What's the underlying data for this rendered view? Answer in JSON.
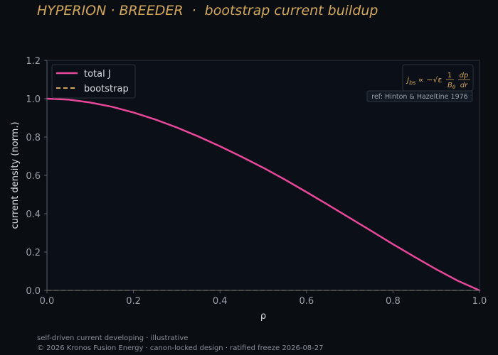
{
  "header": {
    "title_brand": "HYPERION · BREEDER",
    "title_separator": "·",
    "title_sub": "bootstrap current buildup"
  },
  "colors": {
    "background": "#0a0d12",
    "plot_background": "#0b0f17",
    "total_j": "#e8479a",
    "bootstrap": "#d2a75a",
    "axis_text": "#9aa0aa",
    "label_text": "#d9dce2"
  },
  "chart_data": {
    "type": "line",
    "xlabel": "ρ",
    "ylabel": "current density (norm.)",
    "xlim": [
      0.0,
      1.0
    ],
    "ylim": [
      0.0,
      1.2
    ],
    "xticks": [
      "0.0",
      "0.2",
      "0.4",
      "0.6",
      "0.8",
      "1.0"
    ],
    "yticks": [
      "0.0",
      "0.2",
      "0.4",
      "0.6",
      "0.8",
      "1.0",
      "1.2"
    ],
    "grid": false,
    "legend_position": "top-left",
    "series": [
      {
        "name": "total J",
        "style": "solid",
        "x": [
          0.0,
          0.05,
          0.1,
          0.15,
          0.2,
          0.25,
          0.3,
          0.35,
          0.4,
          0.45,
          0.5,
          0.55,
          0.6,
          0.65,
          0.7,
          0.75,
          0.8,
          0.85,
          0.9,
          0.95,
          1.0
        ],
        "y": [
          1.0,
          0.995,
          0.98,
          0.958,
          0.928,
          0.892,
          0.85,
          0.803,
          0.752,
          0.697,
          0.64,
          0.578,
          0.513,
          0.446,
          0.378,
          0.31,
          0.241,
          0.175,
          0.11,
          0.05,
          0.0
        ]
      },
      {
        "name": "bootstrap",
        "style": "dashed",
        "x": [
          0.0,
          1.0
        ],
        "y": [
          0.0,
          0.0
        ]
      }
    ],
    "annotations": {
      "formula_lhs": "j",
      "formula_lhs_sub": "bs",
      "formula_mid": " ∝ −√ε ",
      "formula_num": "1",
      "formula_den": "B",
      "formula_den_sub": "θ",
      "formula_rnum": "dp",
      "formula_rden": "dr",
      "reference": "ref: Hinton & Hazeltine 1976"
    }
  },
  "footer": {
    "line1": "self-driven current developing · illustrative",
    "line2": "© 2026 Kronos Fusion Energy · canon-locked design · ratified freeze 2026-08-27"
  }
}
